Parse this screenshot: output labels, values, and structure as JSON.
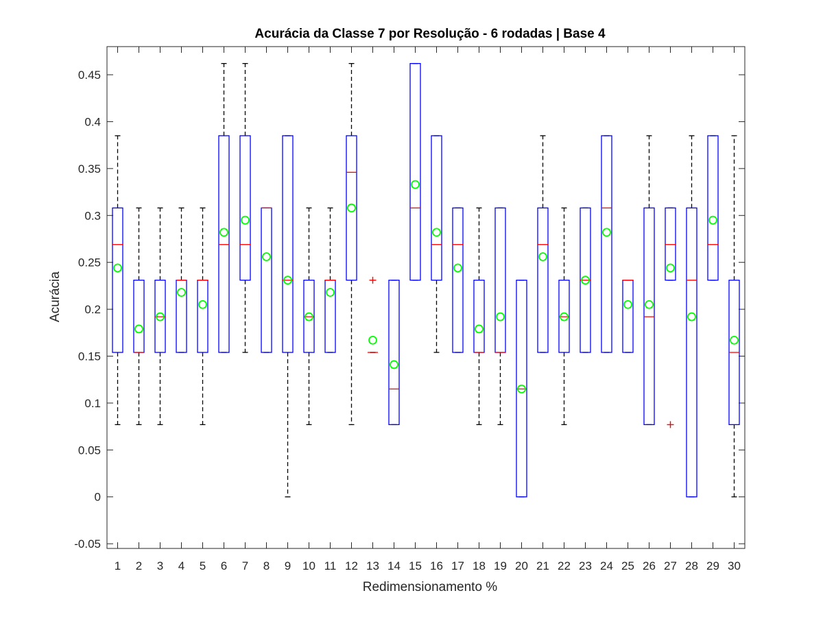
{
  "chart_data": {
    "type": "box",
    "title": "Acurácia da Classe 7 por Resolução - 6 rodadas | Base 4",
    "xlabel": "Redimensionamento %",
    "ylabel": "Acurácia",
    "ylim": [
      -0.055,
      0.48
    ],
    "yticks": [
      -0.05,
      0,
      0.05,
      0.1,
      0.15,
      0.2,
      0.25,
      0.3,
      0.35,
      0.4,
      0.45
    ],
    "ytick_labels": [
      "-0.05",
      "0",
      "0.05",
      "0.1",
      "0.15",
      "0.2",
      "0.25",
      "0.3",
      "0.35",
      "0.4",
      "0.45"
    ],
    "categories": [
      "1",
      "2",
      "3",
      "4",
      "5",
      "6",
      "7",
      "8",
      "9",
      "10",
      "11",
      "12",
      "13",
      "14",
      "15",
      "16",
      "17",
      "18",
      "19",
      "20",
      "21",
      "22",
      "23",
      "24",
      "25",
      "26",
      "27",
      "28",
      "29",
      "30"
    ],
    "boxes": [
      {
        "whisker_low": 0.077,
        "q1": 0.154,
        "median": 0.269,
        "q3": 0.308,
        "whisker_high": 0.385,
        "mean": 0.244,
        "outliers": []
      },
      {
        "whisker_low": 0.077,
        "q1": 0.154,
        "median": 0.154,
        "q3": 0.231,
        "whisker_high": 0.308,
        "mean": 0.179,
        "outliers": []
      },
      {
        "whisker_low": 0.077,
        "q1": 0.154,
        "median": 0.192,
        "q3": 0.231,
        "whisker_high": 0.308,
        "mean": 0.192,
        "outliers": []
      },
      {
        "whisker_low": 0.154,
        "q1": 0.154,
        "median": 0.231,
        "q3": 0.231,
        "whisker_high": 0.308,
        "mean": 0.218,
        "outliers": []
      },
      {
        "whisker_low": 0.077,
        "q1": 0.154,
        "median": 0.231,
        "q3": 0.231,
        "whisker_high": 0.308,
        "mean": 0.205,
        "outliers": []
      },
      {
        "whisker_low": 0.154,
        "q1": 0.154,
        "median": 0.269,
        "q3": 0.385,
        "whisker_high": 0.462,
        "mean": 0.282,
        "outliers": []
      },
      {
        "whisker_low": 0.154,
        "q1": 0.231,
        "median": 0.269,
        "q3": 0.385,
        "whisker_high": 0.462,
        "mean": 0.295,
        "outliers": []
      },
      {
        "whisker_low": 0.154,
        "q1": 0.154,
        "median": 0.308,
        "q3": 0.308,
        "whisker_high": 0.308,
        "mean": 0.256,
        "outliers": []
      },
      {
        "whisker_low": 0.0,
        "q1": 0.154,
        "median": 0.231,
        "q3": 0.385,
        "whisker_high": 0.385,
        "mean": 0.231,
        "outliers": []
      },
      {
        "whisker_low": 0.077,
        "q1": 0.154,
        "median": 0.192,
        "q3": 0.231,
        "whisker_high": 0.308,
        "mean": 0.192,
        "outliers": []
      },
      {
        "whisker_low": 0.154,
        "q1": 0.154,
        "median": 0.231,
        "q3": 0.231,
        "whisker_high": 0.308,
        "mean": 0.218,
        "outliers": []
      },
      {
        "whisker_low": 0.077,
        "q1": 0.231,
        "median": 0.346,
        "q3": 0.385,
        "whisker_high": 0.462,
        "mean": 0.308,
        "outliers": []
      },
      {
        "whisker_low": 0.154,
        "q1": 0.154,
        "median": 0.154,
        "q3": 0.154,
        "whisker_high": 0.154,
        "mean": 0.167,
        "outliers": [
          0.231
        ]
      },
      {
        "whisker_low": 0.077,
        "q1": 0.077,
        "median": 0.115,
        "q3": 0.231,
        "whisker_high": 0.231,
        "mean": 0.141,
        "outliers": []
      },
      {
        "whisker_low": 0.231,
        "q1": 0.231,
        "median": 0.308,
        "q3": 0.462,
        "whisker_high": 0.462,
        "mean": 0.333,
        "outliers": []
      },
      {
        "whisker_low": 0.154,
        "q1": 0.231,
        "median": 0.269,
        "q3": 0.385,
        "whisker_high": 0.385,
        "mean": 0.282,
        "outliers": []
      },
      {
        "whisker_low": 0.154,
        "q1": 0.154,
        "median": 0.269,
        "q3": 0.308,
        "whisker_high": 0.308,
        "mean": 0.244,
        "outliers": []
      },
      {
        "whisker_low": 0.077,
        "q1": 0.154,
        "median": 0.154,
        "q3": 0.231,
        "whisker_high": 0.308,
        "mean": 0.179,
        "outliers": []
      },
      {
        "whisker_low": 0.077,
        "q1": 0.154,
        "median": 0.154,
        "q3": 0.308,
        "whisker_high": 0.308,
        "mean": 0.192,
        "outliers": []
      },
      {
        "whisker_low": 0.0,
        "q1": 0.0,
        "median": 0.115,
        "q3": 0.231,
        "whisker_high": 0.231,
        "mean": 0.115,
        "outliers": []
      },
      {
        "whisker_low": 0.154,
        "q1": 0.154,
        "median": 0.269,
        "q3": 0.308,
        "whisker_high": 0.385,
        "mean": 0.256,
        "outliers": []
      },
      {
        "whisker_low": 0.077,
        "q1": 0.154,
        "median": 0.192,
        "q3": 0.231,
        "whisker_high": 0.308,
        "mean": 0.192,
        "outliers": []
      },
      {
        "whisker_low": 0.154,
        "q1": 0.154,
        "median": 0.231,
        "q3": 0.308,
        "whisker_high": 0.308,
        "mean": 0.231,
        "outliers": []
      },
      {
        "whisker_low": 0.154,
        "q1": 0.154,
        "median": 0.308,
        "q3": 0.385,
        "whisker_high": 0.385,
        "mean": 0.282,
        "outliers": []
      },
      {
        "whisker_low": 0.154,
        "q1": 0.154,
        "median": 0.231,
        "q3": 0.231,
        "whisker_high": 0.231,
        "mean": 0.205,
        "outliers": []
      },
      {
        "whisker_low": 0.077,
        "q1": 0.077,
        "median": 0.192,
        "q3": 0.308,
        "whisker_high": 0.385,
        "mean": 0.205,
        "outliers": []
      },
      {
        "whisker_low": 0.231,
        "q1": 0.231,
        "median": 0.269,
        "q3": 0.308,
        "whisker_high": 0.308,
        "mean": 0.244,
        "outliers": [
          0.077
        ]
      },
      {
        "whisker_low": 0.0,
        "q1": 0.0,
        "median": 0.231,
        "q3": 0.308,
        "whisker_high": 0.385,
        "mean": 0.192,
        "outliers": []
      },
      {
        "whisker_low": 0.231,
        "q1": 0.231,
        "median": 0.269,
        "q3": 0.385,
        "whisker_high": 0.385,
        "mean": 0.295,
        "outliers": []
      },
      {
        "whisker_low": 0.0,
        "q1": 0.077,
        "median": 0.154,
        "q3": 0.231,
        "whisker_high": 0.385,
        "mean": 0.167,
        "outliers": []
      }
    ],
    "grid": false,
    "colors": {
      "box": "#0000ff",
      "median": "#ff0000",
      "whisker": "#000000",
      "mean_marker": "#00ff00",
      "outlier": "#ff0000",
      "axes": "#262626"
    }
  }
}
